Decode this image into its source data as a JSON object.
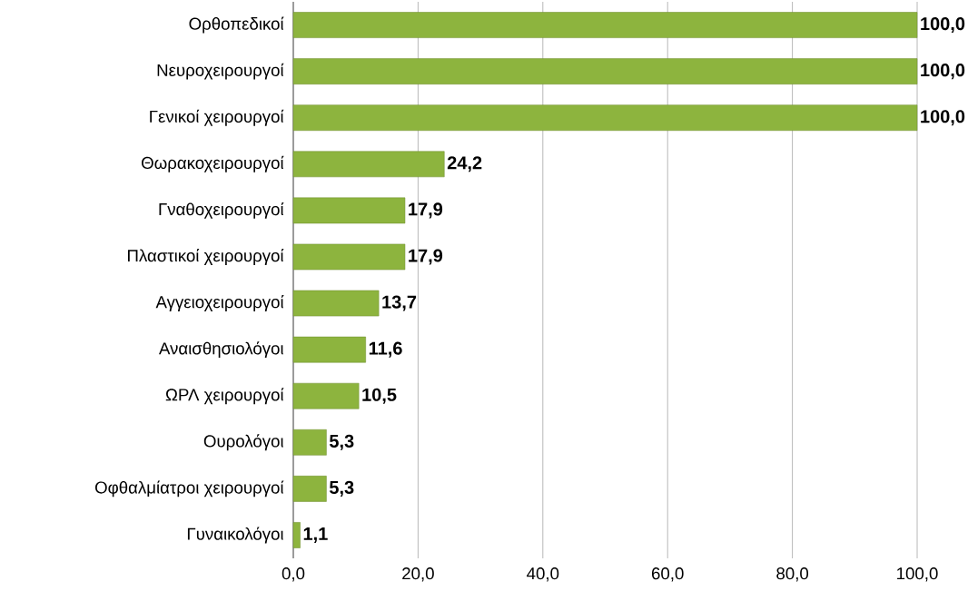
{
  "chart_data": {
    "type": "bar",
    "orientation": "horizontal",
    "categories": [
      "Ορθοπεδικοί",
      "Νευροχειρουργοί",
      "Γενικοί χειρουργοί",
      "Θωρακοχειρουργοί",
      "Γναθοχειρουργοί",
      "Πλαστικοί χειρουργοί",
      "Αγγειοχειρουργοί",
      "Αναισθησιολόγοι",
      "ΩΡΛ χειρουργοί",
      "Ουρολόγοι",
      "Οφθαλμίατροι χειρουργοί",
      "Γυναικολόγοι"
    ],
    "values": [
      100.0,
      100.0,
      100.0,
      24.2,
      17.9,
      17.9,
      13.7,
      11.6,
      10.5,
      5.3,
      5.3,
      1.1
    ],
    "value_labels": [
      "100,0",
      "100,0",
      "100,0",
      "24,2",
      "17,9",
      "17,9",
      "13,7",
      "11,6",
      "10,5",
      "5,3",
      "5,3",
      "1,1"
    ],
    "color": "#8db43e",
    "xlim": [
      0,
      100
    ],
    "xticks": [
      {
        "value": 0,
        "label": "0,0"
      },
      {
        "value": 20,
        "label": "20,0"
      },
      {
        "value": 40,
        "label": "40,0"
      },
      {
        "value": 60,
        "label": "60,0"
      },
      {
        "value": 80,
        "label": "80,0"
      },
      {
        "value": 100,
        "label": "100,0"
      }
    ],
    "grid": "x"
  }
}
